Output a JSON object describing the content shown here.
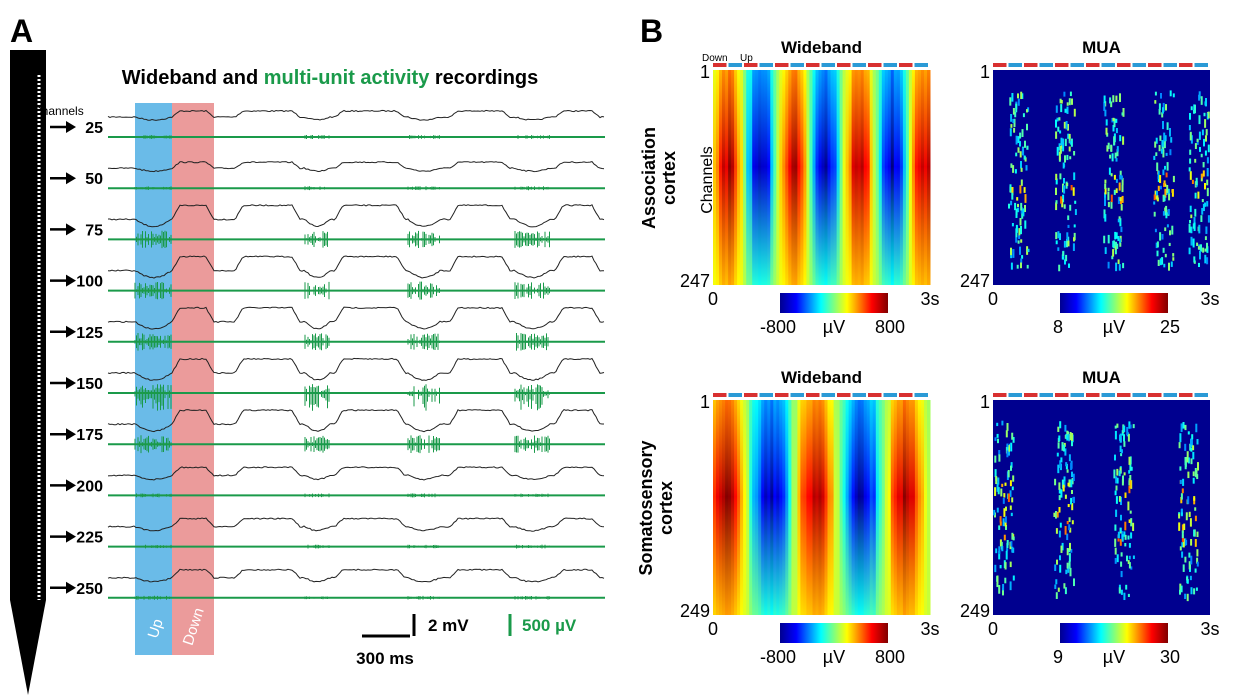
{
  "panel_a": {
    "label": "A",
    "title": [
      "Wideband and ",
      "multi-unit activity",
      " recordings"
    ],
    "channels_label": "Channels",
    "channels": [
      "25",
      "50",
      "75",
      "100",
      "125",
      "150",
      "175",
      "200",
      "225",
      "250"
    ],
    "up": "Up",
    "down": "Down",
    "scale": {
      "time": "300 ms",
      "wideband": "2 mV",
      "mua": "500 µV"
    }
  },
  "panel_b": {
    "label": "B",
    "state_labels": [
      "Down",
      "Up"
    ],
    "y_axis_label": "Channels",
    "rows": [
      {
        "label": [
          "Association",
          "cortex"
        ],
        "maps": [
          {
            "title": "Wideband",
            "y_top": "1",
            "y_bottom": "247",
            "x_start": "0",
            "x_end": "3s",
            "colorbar": [
              "-800",
              "µV",
              "800"
            ]
          },
          {
            "title": "MUA",
            "y_top": "1",
            "y_bottom": "247",
            "x_start": "0",
            "x_end": "3s",
            "colorbar": [
              "8",
              "µV",
              "25"
            ]
          }
        ]
      },
      {
        "label": [
          "Somatosensory",
          "cortex"
        ],
        "maps": [
          {
            "title": "Wideband",
            "y_top": "1",
            "y_bottom": "249",
            "x_start": "0",
            "x_end": "3s",
            "colorbar": [
              "-800",
              "µV",
              "800"
            ]
          },
          {
            "title": "MUA",
            "y_top": "1",
            "y_bottom": "249",
            "x_start": "0",
            "x_end": "3s",
            "colorbar": [
              "9",
              "µV",
              "30"
            ]
          }
        ]
      }
    ]
  }
}
